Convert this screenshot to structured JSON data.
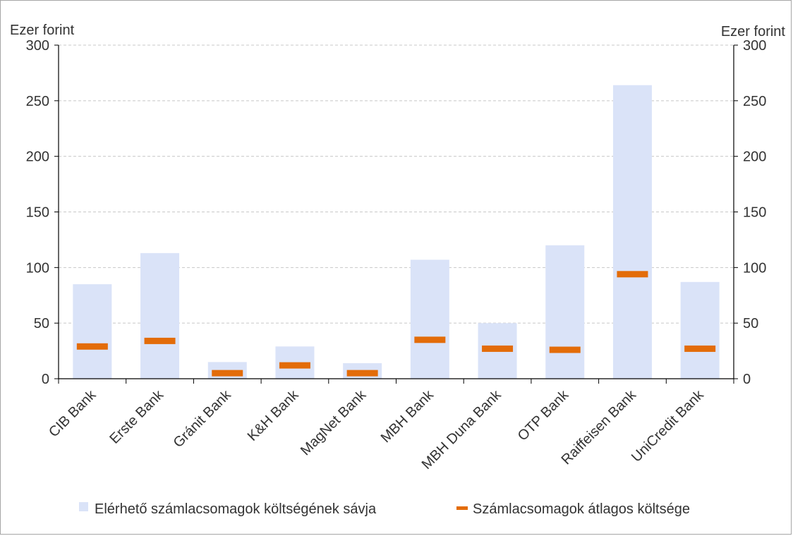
{
  "chart_data": {
    "type": "bar",
    "title": "",
    "y_unit_left": "Ezer forint",
    "y_unit_right": "Ezer forint",
    "ylim": [
      0,
      300
    ],
    "yticks": [
      0,
      50,
      100,
      150,
      200,
      250,
      300
    ],
    "grid": true,
    "categories": [
      "CIB Bank",
      "Erste Bank",
      "Gránit Bank",
      "K&H Bank",
      "MagNet Bank",
      "MBH Bank",
      "MBH Duna Bank",
      "OTP Bank",
      "Raiffeisen Bank",
      "UniCredit Bank"
    ],
    "series": [
      {
        "name": "Elérhető számlacsomagok költségének sávja",
        "kind": "range-bar",
        "color": "#dae3f8",
        "low": [
          0,
          0,
          0,
          0,
          0,
          0,
          0,
          0,
          0,
          0
        ],
        "high": [
          85,
          113,
          15,
          29,
          14,
          107,
          50,
          120,
          264,
          87
        ]
      },
      {
        "name": "Számlacsomagok átlagos költsége",
        "kind": "marker",
        "color": "#e36c09",
        "values": [
          29,
          34,
          5,
          12,
          5,
          35,
          27,
          26,
          94,
          27
        ]
      }
    ],
    "legend_position": "bottom"
  }
}
